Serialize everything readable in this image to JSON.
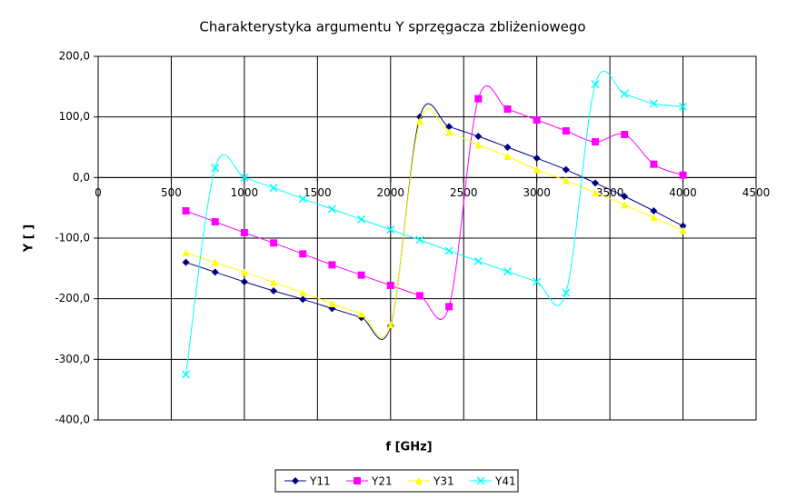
{
  "chart_data": {
    "type": "line",
    "title": "Charakterystyka argumentu Y sprzęgacza zbliżeniowego",
    "x_label": "f [GHz]",
    "y_label": "Y [ ]",
    "x": [
      600,
      800,
      1000,
      1200,
      1400,
      1600,
      1800,
      2000,
      2200,
      2400,
      2600,
      2800,
      3000,
      3200,
      3400,
      3600,
      3800,
      4000
    ],
    "series": [
      {
        "name": "Y11",
        "color": "#000080",
        "marker": "diamond",
        "values": [
          -140,
          -156,
          -172,
          -187,
          -201,
          -216,
          -231,
          -245,
          100,
          84,
          68,
          50,
          32,
          13,
          -9,
          -31,
          -55,
          -80
        ]
      },
      {
        "name": "Y21",
        "color": "#ff00ff",
        "marker": "square",
        "values": [
          -55,
          -73,
          -91,
          -108,
          -126,
          -144,
          -161,
          -178,
          -195,
          -213,
          130,
          113,
          95,
          77,
          59,
          71,
          22,
          4
        ]
      },
      {
        "name": "Y31",
        "color": "#ffff00",
        "marker": "triangle",
        "values": [
          -124,
          -140,
          -156,
          -173,
          -190,
          -208,
          -225,
          -243,
          93,
          75,
          54,
          35,
          13,
          -5,
          -25,
          -45,
          -66,
          -87
        ]
      },
      {
        "name": "Y41",
        "color": "#00ffff",
        "marker": "x",
        "values": [
          -325,
          16,
          0,
          -17,
          -35,
          -52,
          -69,
          -86,
          -103,
          -121,
          -138,
          -155,
          -172,
          -190,
          154,
          138,
          122,
          117
        ]
      }
    ],
    "xlim": [
      0,
      4500
    ],
    "xticks": [
      0,
      500,
      1000,
      1500,
      2000,
      2500,
      3000,
      3500,
      4000,
      4500
    ],
    "ylim": [
      -400,
      200
    ],
    "yticks": [
      {
        "value": -400,
        "label": "-400,0"
      },
      {
        "value": -300,
        "label": "-300,0"
      },
      {
        "value": -200,
        "label": "-200,0"
      },
      {
        "value": -100,
        "label": "-100,0"
      },
      {
        "value": 0,
        "label": "0,0"
      },
      {
        "value": 100,
        "label": "100,0"
      },
      {
        "value": 200,
        "label": "200,0"
      }
    ],
    "grid": true,
    "smooth": true,
    "legend": "bottom"
  }
}
